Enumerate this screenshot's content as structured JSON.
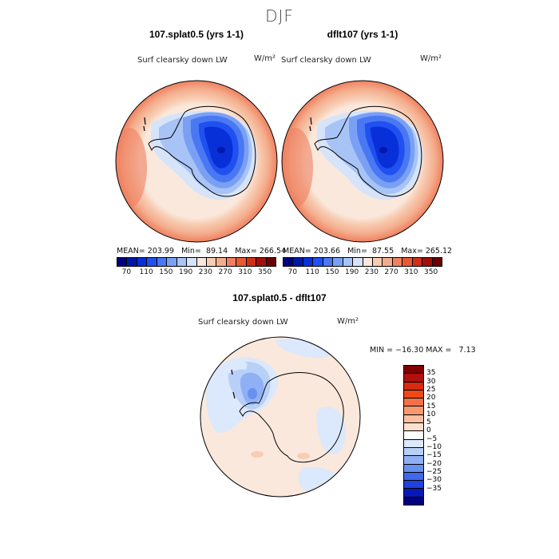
{
  "figure": {
    "season": "DJF"
  },
  "panel_a": {
    "title": "107.splat0.5 (yrs 1-1)",
    "variable": "Surf clearsky down LW",
    "units": "W/m²",
    "stats": "MEAN= 203.99   Min=  89.14   Max= 266.54"
  },
  "panel_b": {
    "title": "dflt107 (yrs 1-1)",
    "variable": "Surf clearsky down LW",
    "units": "W/m²",
    "stats": "MEAN= 203.66   Min=  87.55   Max= 265.12"
  },
  "panel_c": {
    "title": "107.splat0.5 - dflt107",
    "variable": "Surf clearsky down LW",
    "units": "W/m²",
    "stats": "MIN = −16.30 MAX =   7.13"
  },
  "colorbar_abs": {
    "colors": [
      "#00007f",
      "#0018a8",
      "#0830d8",
      "#2050f0",
      "#4a78f2",
      "#7aa0f4",
      "#a8c4f6",
      "#d6e4fa",
      "#fbe8dc",
      "#f8cdb4",
      "#f4ad8c",
      "#ef8060",
      "#e85a34",
      "#d03014",
      "#a01008",
      "#6a0000"
    ],
    "tick_labels": [
      "70",
      "110",
      "150",
      "190",
      "230",
      "270",
      "310",
      "350"
    ]
  },
  "colorbar_diff": {
    "colors": [
      "#800000",
      "#b01010",
      "#d82a10",
      "#f04818",
      "#f47048",
      "#f79870",
      "#f9bfa0",
      "#fbe0cc",
      "#ffffff",
      "#dce8fb",
      "#b8d0f8",
      "#8fb0f4",
      "#6890f0",
      "#4068ec",
      "#2040e0",
      "#0818b8",
      "#000080"
    ],
    "tick_labels": [
      "35",
      "30",
      "25",
      "20",
      "15",
      "10",
      "5",
      "0",
      "−5",
      "−10",
      "−15",
      "−20",
      "−25",
      "−30",
      "−35"
    ]
  }
}
